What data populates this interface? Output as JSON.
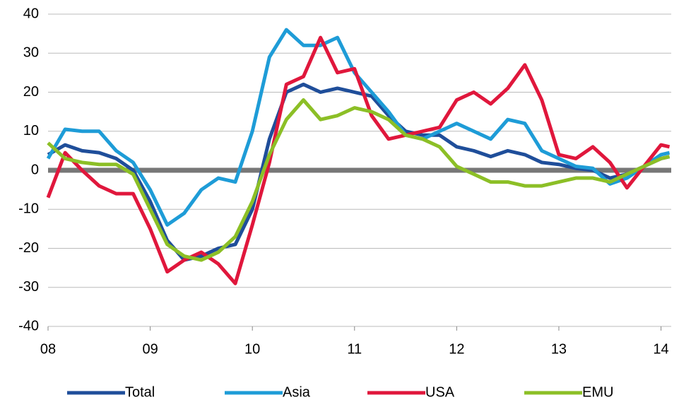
{
  "chart_data": {
    "type": "line",
    "x": [
      8,
      8.167,
      8.333,
      8.5,
      8.667,
      8.833,
      9,
      9.167,
      9.333,
      9.5,
      9.667,
      9.833,
      10,
      10.167,
      10.333,
      10.5,
      10.667,
      10.833,
      11,
      11.167,
      11.333,
      11.5,
      11.667,
      11.833,
      12,
      12.167,
      12.333,
      12.5,
      12.667,
      12.833,
      13,
      13.167,
      13.333,
      13.5,
      13.667,
      13.833,
      14,
      14.083
    ],
    "series": [
      {
        "name": "Total",
        "color": "#1f4e9a",
        "values": [
          4,
          6.5,
          5,
          4.5,
          3,
          0,
          -8,
          -18,
          -23,
          -22,
          -20,
          -19,
          -10,
          8,
          20,
          22,
          20,
          21,
          20,
          19,
          14,
          10,
          9,
          9,
          6,
          5,
          3.5,
          5,
          4,
          2,
          1.5,
          0.5,
          0,
          -2,
          -1,
          1,
          3,
          3.5
        ]
      },
      {
        "name": "Asia",
        "color": "#1e9cd7",
        "values": [
          3,
          10.5,
          10,
          10,
          5,
          2,
          -5,
          -14,
          -11,
          -5,
          -2,
          -3,
          10,
          29,
          36,
          32,
          32,
          34,
          25,
          20,
          15,
          9,
          8,
          10,
          12,
          10,
          8,
          13,
          12,
          5,
          3,
          1,
          0.5,
          -3.5,
          -2,
          1,
          4,
          4.5
        ]
      },
      {
        "name": "USA",
        "color": "#e0173c",
        "values": [
          -7,
          4.5,
          0,
          -4,
          -6,
          -6,
          -15,
          -26,
          -23,
          -21,
          -24,
          -29,
          -14,
          2,
          22,
          24,
          34,
          25,
          26,
          14,
          8,
          9,
          10,
          11,
          18,
          20,
          17,
          21,
          27,
          18,
          4,
          3,
          6,
          2,
          -4.5,
          1,
          6.5,
          6
        ]
      },
      {
        "name": "EMU",
        "color": "#8cbf26",
        "values": [
          7,
          3,
          2,
          1.5,
          1.5,
          -1,
          -10,
          -19,
          -22,
          -23,
          -21,
          -17,
          -8,
          4,
          13,
          18,
          13,
          14,
          16,
          15,
          13,
          9,
          8,
          6,
          1,
          -1,
          -3,
          -3,
          -4,
          -4,
          -3,
          -2,
          -2,
          -3,
          -1,
          1,
          3,
          3.5
        ]
      }
    ],
    "xlim": [
      8,
      14.1
    ],
    "xticks": [
      {
        "value": 8,
        "label": "08"
      },
      {
        "value": 9,
        "label": "09"
      },
      {
        "value": 10,
        "label": "10"
      },
      {
        "value": 11,
        "label": "11"
      },
      {
        "value": 12,
        "label": "12"
      },
      {
        "value": 13,
        "label": "13"
      },
      {
        "value": 14,
        "label": "14"
      }
    ],
    "ylim": [
      -40,
      40
    ],
    "yticks": [
      -40,
      -30,
      -20,
      -10,
      0,
      10,
      20,
      30,
      40
    ],
    "grid": true,
    "legend": "bottom"
  }
}
